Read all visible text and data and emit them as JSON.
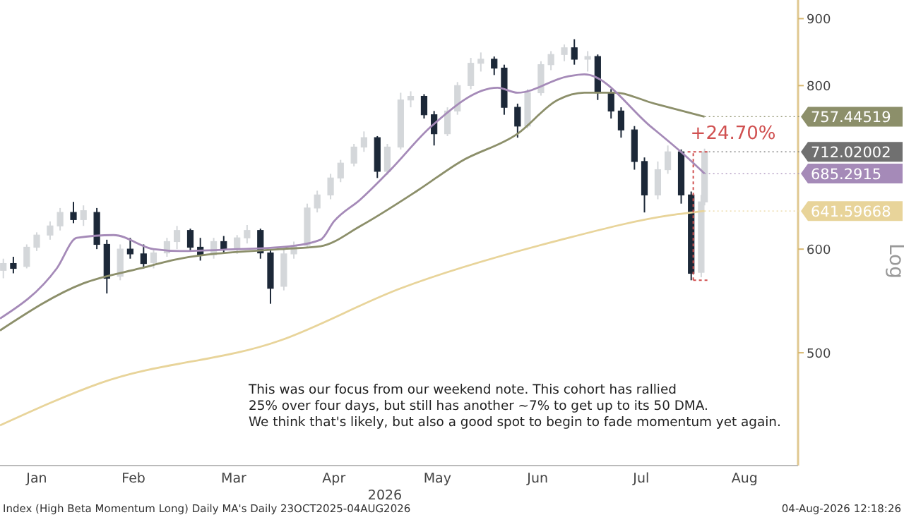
{
  "chart_data": {
    "type": "candlestick",
    "log": true,
    "ylabel": "Log",
    "xlabel": "2026",
    "xlim": [
      "2026-01-05",
      "2026-09-01"
    ],
    "xticks": [
      {
        "value": "2026-01-16",
        "label": "Jan"
      },
      {
        "value": "2026-02-14",
        "label": "Feb"
      },
      {
        "value": "2026-03-16",
        "label": "Mar"
      },
      {
        "value": "2026-04-15",
        "label": "Apr"
      },
      {
        "value": "2026-05-16",
        "label": "May"
      },
      {
        "value": "2026-06-15",
        "label": "Jun"
      },
      {
        "value": "2026-07-16",
        "label": "Jul"
      },
      {
        "value": "2026-08-16",
        "label": "Aug"
      }
    ],
    "ylim": [
      410,
      930
    ],
    "yticks": [
      500,
      600,
      800,
      900
    ],
    "series": [
      {
        "colors": [
          "#d4d7da",
          "#1c2838",
          "#d4d7da",
          "#d4d7da",
          "#d4d7da",
          "#d4d7da",
          "#1c2838",
          "#d4d7da",
          "#1c2838",
          "#1c2838",
          "#d4d7da",
          "#1c2838",
          "#1c2838",
          "#d4d7da",
          "#d4d7da",
          "#d4d7da",
          "#1c2838",
          "#1c2838",
          "#d4d7da",
          "#1c2838",
          "#d4d7da",
          "#d4d7da",
          "#1c2838",
          "#1c2838",
          "#d4d7da",
          "#d4d7da",
          "#d4d7da",
          "#d4d7da",
          "#d4d7da",
          "#d4d7da",
          "#d4d7da",
          "#d4d7da",
          "#1c2838",
          "#d4d7da",
          "#d4d7da",
          "#d4d7da",
          "#1c2838",
          "#1c2838",
          "#d4d7da",
          "#d4d7da",
          "#d4d7da",
          "#d4d7da",
          "#1c2838",
          "#1c2838",
          "#1c2838",
          "#d4d7da",
          "#d4d7da",
          "#d4d7da",
          "#d4d7da",
          "#1c2838",
          "#d4d7da",
          "#1c2838",
          "#1c2838",
          "#1c2838",
          "#1c2838",
          "#1c2838",
          "#d4d7da",
          "#d4d7da",
          "#1c2838",
          "#1c2838",
          "#d4d7da",
          "#d4d7da"
        ],
        "x": [
          "2026-01-06",
          "2026-01-09",
          "2026-01-13",
          "2026-01-16",
          "2026-01-20",
          "2026-01-23",
          "2026-01-27",
          "2026-01-30",
          "2026-02-03",
          "2026-02-06",
          "2026-02-10",
          "2026-02-13",
          "2026-02-17",
          "2026-02-20",
          "2026-02-24",
          "2026-02-27",
          "2026-03-03",
          "2026-03-06",
          "2026-03-10",
          "2026-03-13",
          "2026-03-17",
          "2026-03-20",
          "2026-03-24",
          "2026-03-27",
          "2026-03-31",
          "2026-04-03",
          "2026-04-07",
          "2026-04-10",
          "2026-04-14",
          "2026-04-17",
          "2026-04-21",
          "2026-04-24",
          "2026-04-28",
          "2026-05-01",
          "2026-05-05",
          "2026-05-08",
          "2026-05-12",
          "2026-05-15",
          "2026-05-19",
          "2026-05-22",
          "2026-05-26",
          "2026-05-29",
          "2026-06-02",
          "2026-06-05",
          "2026-06-09",
          "2026-06-12",
          "2026-06-16",
          "2026-06-19",
          "2026-06-23",
          "2026-06-26",
          "2026-06-30",
          "2026-07-03",
          "2026-07-07",
          "2026-07-10",
          "2026-07-14",
          "2026-07-17",
          "2026-07-21",
          "2026-07-24",
          "2026-07-28",
          "2026-07-31",
          "2026-08-03",
          "2026-08-04"
        ],
        "ohlc": [
          [
            578,
            590,
            570,
            585
          ],
          [
            585,
            592,
            575,
            580
          ],
          [
            582,
            605,
            580,
            602
          ],
          [
            602,
            618,
            598,
            615
          ],
          [
            615,
            630,
            610,
            625
          ],
          [
            625,
            645,
            620,
            640
          ],
          [
            640,
            652,
            628,
            632
          ],
          [
            632,
            648,
            625,
            642
          ],
          [
            640,
            645,
            600,
            605
          ],
          [
            605,
            610,
            555,
            570
          ],
          [
            572,
            605,
            568,
            600
          ],
          [
            600,
            612,
            590,
            595
          ],
          [
            595,
            605,
            580,
            585
          ],
          [
            586,
            600,
            580,
            596
          ],
          [
            596,
            612,
            592,
            608
          ],
          [
            608,
            625,
            600,
            620
          ],
          [
            620,
            622,
            598,
            602
          ],
          [
            602,
            612,
            588,
            594
          ],
          [
            594,
            612,
            590,
            608
          ],
          [
            608,
            614,
            596,
            600
          ],
          [
            600,
            615,
            595,
            612
          ],
          [
            612,
            626,
            606,
            620
          ],
          [
            620,
            622,
            590,
            596
          ],
          [
            596,
            600,
            545,
            560
          ],
          [
            562,
            600,
            558,
            595
          ],
          [
            595,
            608,
            590,
            604
          ],
          [
            604,
            650,
            602,
            645
          ],
          [
            645,
            665,
            640,
            660
          ],
          [
            660,
            685,
            655,
            680
          ],
          [
            680,
            702,
            675,
            698
          ],
          [
            698,
            722,
            694,
            718
          ],
          [
            718,
            738,
            712,
            730
          ],
          [
            730,
            732,
            680,
            688
          ],
          [
            688,
            722,
            684,
            718
          ],
          [
            718,
            790,
            715,
            780
          ],
          [
            780,
            792,
            770,
            785
          ],
          [
            785,
            788,
            755,
            760
          ],
          [
            760,
            765,
            720,
            735
          ],
          [
            735,
            770,
            732,
            765
          ],
          [
            765,
            805,
            760,
            800
          ],
          [
            800,
            840,
            795,
            832
          ],
          [
            832,
            848,
            820,
            838
          ],
          [
            838,
            842,
            815,
            825
          ],
          [
            825,
            830,
            760,
            770
          ],
          [
            770,
            775,
            730,
            745
          ],
          [
            745,
            795,
            742,
            790
          ],
          [
            790,
            835,
            786,
            830
          ],
          [
            830,
            850,
            822,
            845
          ],
          [
            845,
            860,
            835,
            855
          ],
          [
            855,
            868,
            830,
            838
          ],
          [
            838,
            850,
            820,
            842
          ],
          [
            842,
            845,
            780,
            790
          ],
          [
            790,
            795,
            755,
            765
          ],
          [
            765,
            770,
            730,
            740
          ],
          [
            740,
            745,
            690,
            700
          ],
          [
            700,
            705,
            640,
            660
          ],
          [
            660,
            700,
            655,
            690
          ],
          [
            690,
            720,
            685,
            712
          ],
          [
            712,
            715,
            650,
            660
          ],
          [
            660,
            664,
            568,
            575
          ],
          [
            576,
            660,
            571,
            652
          ],
          [
            652,
            716,
            648,
            712.02002
          ]
        ]
      },
      {
        "type": "line",
        "color": "#8c8f6a",
        "x": [
          "2026-01-05",
          "2026-01-30",
          "2026-02-16",
          "2026-02-28",
          "2026-03-30",
          "2026-04-11",
          "2026-04-23",
          "2026-05-10",
          "2026-05-23",
          "2026-06-09",
          "2026-06-21",
          "2026-06-29",
          "2026-07-08",
          "2026-07-20",
          "2026-08-04"
        ],
        "values": [
          520,
          565,
          580,
          590,
          600,
          603,
          625,
          665,
          700,
          735,
          780,
          790,
          790,
          775,
          757.44519
        ],
        "value_labels": [
          null,
          null,
          null,
          null,
          null,
          null,
          null,
          null,
          null,
          null,
          null,
          null,
          null,
          null,
          "757.44519"
        ]
      },
      {
        "type": "line",
        "color": "#a58ab8",
        "x": [
          "2026-01-05",
          "2026-01-22",
          "2026-01-28",
          "2026-02-08",
          "2026-02-20",
          "2026-02-28",
          "2026-03-17",
          "2026-03-30",
          "2026-04-11",
          "2026-04-15",
          "2026-04-23",
          "2026-05-02",
          "2026-05-14",
          "2026-06-03",
          "2026-06-09",
          "2026-06-24",
          "2026-06-29",
          "2026-07-19",
          "2026-07-29",
          "2026-08-04"
        ],
        "values": [
          531,
          580,
          612,
          615,
          600,
          598,
          600,
          602,
          610,
          630,
          655,
          690,
          744,
          797,
          790,
          813,
          816,
          744,
          708,
          685.2915
        ],
        "value_labels": [
          null,
          null,
          null,
          null,
          null,
          null,
          null,
          null,
          null,
          null,
          null,
          null,
          null,
          null,
          null,
          null,
          null,
          null,
          null,
          "685.2915"
        ]
      },
      {
        "type": "line",
        "color": "#e8d49a",
        "x": [
          "2026-01-05",
          "2026-02-04",
          "2026-03-30",
          "2026-05-05",
          "2026-06-21",
          "2026-07-25",
          "2026-08-04"
        ],
        "values": [
          440,
          474,
          511,
          560,
          609,
          637,
          641.59668
        ],
        "value_labels": [
          null,
          null,
          null,
          null,
          null,
          null,
          "641.59668"
        ]
      }
    ],
    "annotations": [
      {
        "text": "+24.70%",
        "x": "2026-08-04",
        "y": 712.02002
      },
      {
        "text": "712.02002",
        "x": "2026-08-04",
        "y": 712.02002
      },
      "This was our focus from our weekend note. This cohort has rallied\n25% over four days, but still has another ~7% to get up to its 50 DMA.\nWe think that's likely, but also a good spot to begin to fade momentum yet again.",
      "Index (High Beta Momentum Long) Daily MA's Daily 23OCT2025-04AUG2026",
      "04-Aug-2026 12:18:26"
    ]
  }
}
